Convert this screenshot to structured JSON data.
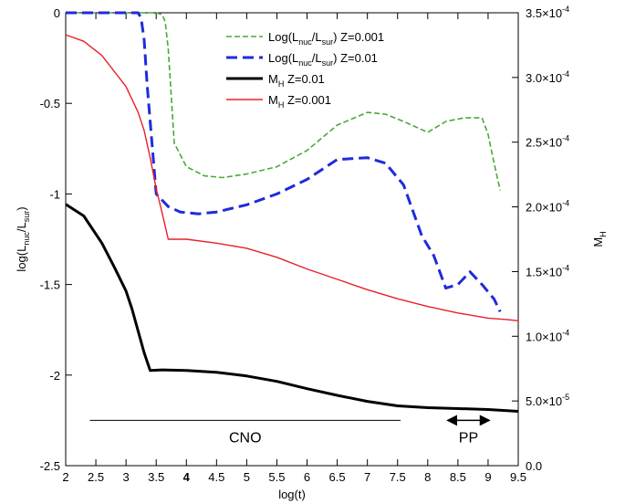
{
  "chart_data": {
    "type": "line",
    "xlabel": "log(t)",
    "ylabel_left": {
      "base": "log(L",
      "sub1": "nuc",
      "mid": "/L",
      "sub2": "sur",
      "end": ")"
    },
    "ylabel_right": {
      "base": "M",
      "sub": "H"
    },
    "xlim": [
      2,
      9.5
    ],
    "ylim_left": [
      -2.5,
      0
    ],
    "ylim_right": [
      0,
      0.00035
    ],
    "x_ticks": [
      "2",
      "2.5",
      "3",
      "3.5",
      "4",
      "4.5",
      "5",
      "5.5",
      "6",
      "6.5",
      "7",
      "7.5",
      "8",
      "8.5",
      "9",
      "9.5"
    ],
    "y_ticks_left": [
      "0",
      "-0.5",
      "-1",
      "-1.5",
      "-2",
      "-2.5"
    ],
    "y_ticks_right": [
      {
        "value": 0.0,
        "mant": "0.0",
        "exp": ""
      },
      {
        "value": 5e-05,
        "mant": "5.0×10",
        "exp": "-5"
      },
      {
        "value": 0.0001,
        "mant": "1.0×10",
        "exp": "-4"
      },
      {
        "value": 0.00015,
        "mant": "1.5×10",
        "exp": "-4"
      },
      {
        "value": 0.0002,
        "mant": "2.0×10",
        "exp": "-4"
      },
      {
        "value": 0.00025,
        "mant": "2.5×10",
        "exp": "-4"
      },
      {
        "value": 0.0003,
        "mant": "3.0×10",
        "exp": "-4"
      },
      {
        "value": 0.00035,
        "mant": "3.5×10",
        "exp": "-4"
      }
    ],
    "legend": {
      "placement": "top-center",
      "entries": [
        {
          "text": "Log(L",
          "sub1": "nuc",
          "mid": "/L",
          "sub2": "sur",
          "end": ") Z=0.001",
          "color": "#4aa83a",
          "style": "dashed-thin"
        },
        {
          "text": "Log(L",
          "sub1": "nuc",
          "mid": "/L",
          "sub2": "sur",
          "end": ") Z=0.01",
          "color": "#1f2bdc",
          "style": "dashed-thick"
        },
        {
          "text": "M",
          "sub1": "H",
          "mid": "",
          "sub2": "",
          "end": " Z=0.01",
          "color": "#000000",
          "style": "solid-thick"
        },
        {
          "text": "M",
          "sub1": "H",
          "mid": "",
          "sub2": "",
          "end": " Z=0.001",
          "color": "#e8202a",
          "style": "solid-thin"
        }
      ]
    },
    "series": [
      {
        "name": "Log(Lnuc/Lsur) Z=0.001",
        "axis": "left",
        "color": "#4aa83a",
        "x": [
          2.0,
          3.5,
          3.6,
          3.65,
          3.7,
          3.8,
          4.0,
          4.3,
          4.6,
          5.0,
          5.5,
          6.0,
          6.5,
          7.0,
          7.3,
          7.6,
          8.0,
          8.3,
          8.6,
          8.9,
          9.0,
          9.1,
          9.2
        ],
        "y": [
          0.0,
          0.0,
          -0.01,
          -0.05,
          -0.2,
          -0.72,
          -0.85,
          -0.9,
          -0.91,
          -0.89,
          -0.85,
          -0.76,
          -0.62,
          -0.55,
          -0.56,
          -0.6,
          -0.66,
          -0.6,
          -0.58,
          -0.58,
          -0.67,
          -0.83,
          -0.98
        ]
      },
      {
        "name": "Log(Lnuc/Lsur) Z=0.01",
        "axis": "left",
        "color": "#1f2bdc",
        "x": [
          2.0,
          3.2,
          3.25,
          3.3,
          3.35,
          3.5,
          3.7,
          3.9,
          4.2,
          4.5,
          5.0,
          5.5,
          6.0,
          6.5,
          7.0,
          7.3,
          7.6,
          7.9,
          8.1,
          8.3,
          8.5,
          8.7,
          8.9,
          9.1,
          9.2
        ],
        "y": [
          0.0,
          0.0,
          -0.03,
          -0.15,
          -0.4,
          -1.0,
          -1.07,
          -1.1,
          -1.11,
          -1.1,
          -1.06,
          -1.0,
          -0.92,
          -0.81,
          -0.8,
          -0.83,
          -0.95,
          -1.23,
          -1.34,
          -1.52,
          -1.5,
          -1.43,
          -1.5,
          -1.58,
          -1.65
        ]
      },
      {
        "name": "M_H Z=0.01",
        "axis": "right",
        "color": "#000000",
        "x": [
          2.0,
          2.3,
          2.6,
          2.8,
          3.0,
          3.1,
          3.2,
          3.3,
          3.4,
          3.6,
          4.0,
          4.5,
          5.0,
          5.5,
          6.0,
          6.5,
          7.0,
          7.5,
          8.0,
          8.5,
          9.0,
          9.5
        ],
        "y": [
          0.000202,
          0.000193,
          0.000172,
          0.000154,
          0.000135,
          0.000121,
          0.000104,
          8.72e-05,
          7.35e-05,
          7.4e-05,
          7.35e-05,
          7.22e-05,
          6.93e-05,
          6.51e-05,
          5.95e-05,
          5.43e-05,
          4.97e-05,
          4.62e-05,
          4.48e-05,
          4.41e-05,
          4.34e-05,
          4.2e-05
        ]
      },
      {
        "name": "M_H Z=0.001",
        "axis": "right",
        "color": "#e8202a",
        "x": [
          2.0,
          2.3,
          2.6,
          3.0,
          3.2,
          3.3,
          3.4,
          3.5,
          3.6,
          3.7,
          4.0,
          4.5,
          5.0,
          5.5,
          6.0,
          6.5,
          7.0,
          7.5,
          8.0,
          8.5,
          9.0,
          9.3,
          9.5
        ],
        "y": [
          0.000333,
          0.000328,
          0.000317,
          0.000293,
          0.000273,
          0.000259,
          0.000238,
          0.000214,
          0.000195,
          0.000175,
          0.000175,
          0.000172,
          0.000168,
          0.000161,
          0.000152,
          0.000144,
          0.000136,
          0.000129,
          0.000123,
          0.000118,
          0.000114,
          0.000113,
          0.000112
        ]
      }
    ],
    "annotations": [
      {
        "text": "CNO",
        "x_start": 2.4,
        "x_end": 7.55,
        "y_left": -2.25
      },
      {
        "text": "PP",
        "x_start": 8.3,
        "x_end": 9.05,
        "y_left": -2.25
      }
    ]
  }
}
